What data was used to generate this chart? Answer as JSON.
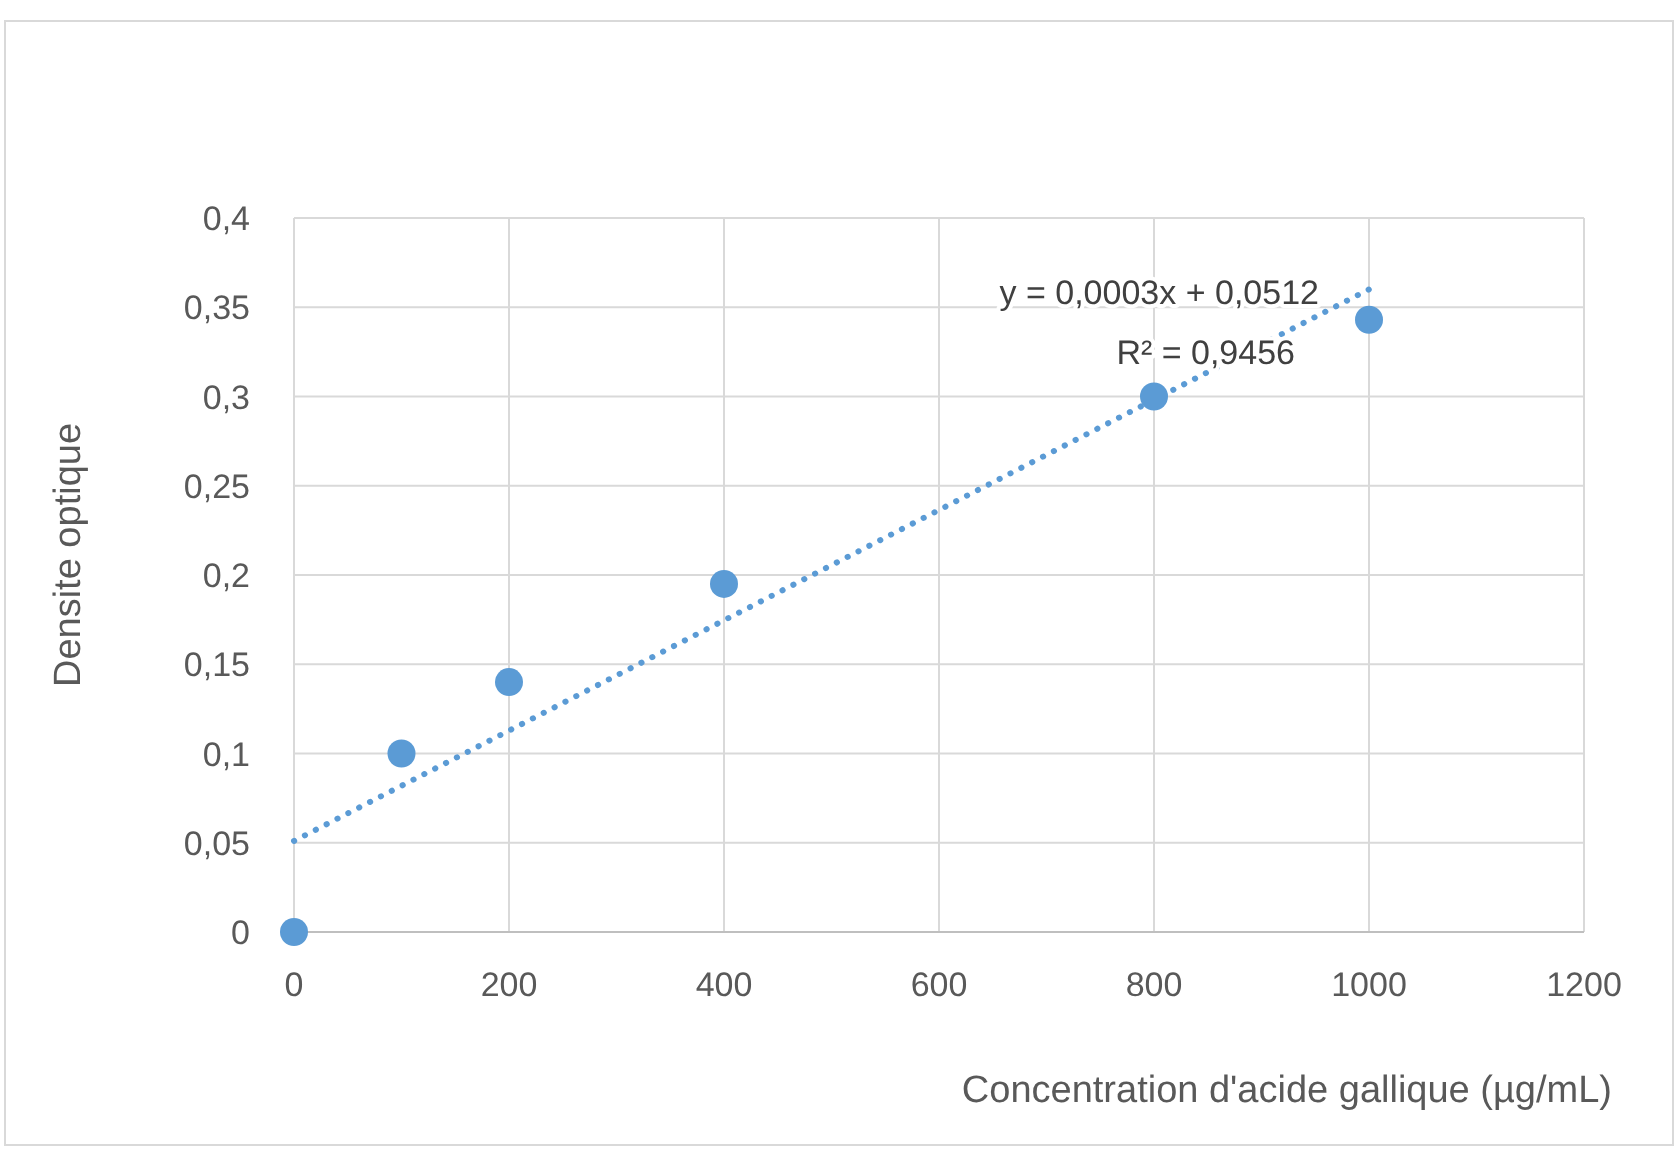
{
  "chart_data": {
    "type": "scatter",
    "xlabel": "Concentration d'acide gallique (µg/mL)",
    "ylabel": "Densite optique",
    "xlim": [
      0,
      1200
    ],
    "xticks": [
      0,
      200,
      400,
      600,
      800,
      1000,
      1200
    ],
    "ylim": [
      0,
      0.4
    ],
    "yticks": [
      {
        "value": 0,
        "label": "0"
      },
      {
        "value": 0.05,
        "label": "0,05"
      },
      {
        "value": 0.1,
        "label": "0,1"
      },
      {
        "value": 0.15,
        "label": "0,15"
      },
      {
        "value": 0.2,
        "label": "0,2"
      },
      {
        "value": 0.25,
        "label": "0,25"
      },
      {
        "value": 0.3,
        "label": "0,3"
      },
      {
        "value": 0.35,
        "label": "0,35"
      },
      {
        "value": 0.4,
        "label": "0,4"
      }
    ],
    "grid": true,
    "marker": "circle",
    "series": [
      {
        "type": "scatter",
        "color": "#5b9bd5",
        "x": [
          0,
          100,
          200,
          400,
          800,
          1000
        ],
        "values": [
          0,
          0.1,
          0.14,
          0.195,
          0.3,
          0.343
        ]
      },
      {
        "type": "line",
        "color": "#5b9bd5",
        "line_style": "dotted",
        "marker": "none",
        "x": [
          0,
          1000
        ],
        "values": [
          0.051,
          0.36
        ]
      }
    ],
    "annotations": [
      "y = 0,0003x + 0,0512",
      "R² = 0,9456"
    ]
  }
}
